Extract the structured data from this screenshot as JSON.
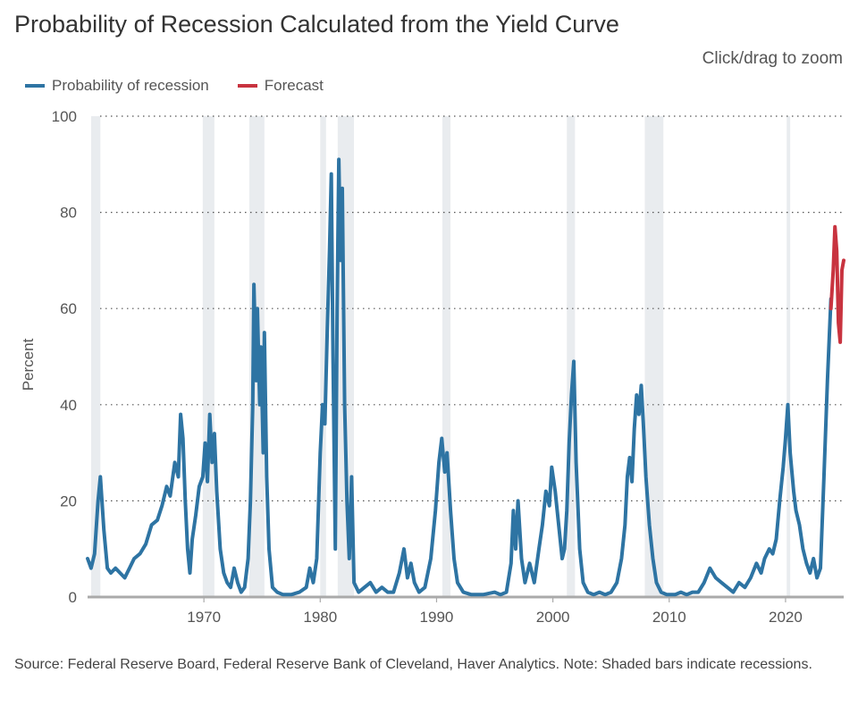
{
  "header": {
    "title": "Probability of Recession Calculated from the Yield Curve",
    "zoom_hint": "Click/drag to zoom"
  },
  "footer": {
    "source": "Source: Federal Reserve Board, Federal Reserve Bank of Cleveland, Haver Analytics. Note: Shaded bars indicate recessions."
  },
  "colors": {
    "series": "#2e74a3",
    "forecast": "#c8333f",
    "recession": "#e9ecef",
    "grid": "#555555",
    "axis": "#aaaaaa"
  },
  "chart_data": {
    "type": "line",
    "title": "Probability of Recession Calculated from the Yield Curve",
    "xlabel": "",
    "ylabel": "Percent",
    "xlim": [
      1960.0,
      2025.0
    ],
    "ylim": [
      0,
      100
    ],
    "x_ticks": [
      1970,
      1980,
      1990,
      2000,
      2010,
      2020
    ],
    "y_ticks": [
      0,
      20,
      40,
      60,
      80,
      100
    ],
    "grid": "horizontal dotted",
    "legend_position": "top-left",
    "recessions": [
      [
        1960.3,
        1961.1
      ],
      [
        1969.9,
        1970.9
      ],
      [
        1973.9,
        1975.2
      ],
      [
        1980.0,
        1980.5
      ],
      [
        1981.5,
        1982.9
      ],
      [
        1990.5,
        1991.2
      ],
      [
        2001.2,
        2001.9
      ],
      [
        2007.9,
        2009.5
      ],
      [
        2020.1,
        2020.4
      ]
    ],
    "series": [
      {
        "name": "Probability of recession",
        "points": [
          [
            1960.0,
            8
          ],
          [
            1960.3,
            6
          ],
          [
            1960.6,
            9
          ],
          [
            1960.9,
            20
          ],
          [
            1961.1,
            25
          ],
          [
            1961.4,
            14
          ],
          [
            1961.7,
            6
          ],
          [
            1962.0,
            5
          ],
          [
            1962.4,
            6
          ],
          [
            1962.8,
            5
          ],
          [
            1963.2,
            4
          ],
          [
            1963.6,
            6
          ],
          [
            1964.0,
            8
          ],
          [
            1964.5,
            9
          ],
          [
            1965.0,
            11
          ],
          [
            1965.5,
            15
          ],
          [
            1966.0,
            16
          ],
          [
            1966.4,
            19
          ],
          [
            1966.8,
            23
          ],
          [
            1967.1,
            21
          ],
          [
            1967.5,
            28
          ],
          [
            1967.8,
            25
          ],
          [
            1968.0,
            38
          ],
          [
            1968.2,
            33
          ],
          [
            1968.4,
            20
          ],
          [
            1968.6,
            10
          ],
          [
            1968.8,
            5
          ],
          [
            1969.0,
            12
          ],
          [
            1969.3,
            17
          ],
          [
            1969.6,
            23
          ],
          [
            1969.9,
            25
          ],
          [
            1970.1,
            32
          ],
          [
            1970.3,
            24
          ],
          [
            1970.5,
            38
          ],
          [
            1970.7,
            28
          ],
          [
            1970.9,
            34
          ],
          [
            1971.1,
            22
          ],
          [
            1971.4,
            10
          ],
          [
            1971.7,
            5
          ],
          [
            1972.0,
            3
          ],
          [
            1972.3,
            2
          ],
          [
            1972.6,
            6
          ],
          [
            1972.9,
            3
          ],
          [
            1973.2,
            1
          ],
          [
            1973.5,
            2
          ],
          [
            1973.8,
            8
          ],
          [
            1974.0,
            20
          ],
          [
            1974.2,
            40
          ],
          [
            1974.3,
            65
          ],
          [
            1974.5,
            45
          ],
          [
            1974.6,
            60
          ],
          [
            1974.8,
            40
          ],
          [
            1974.9,
            52
          ],
          [
            1975.1,
            30
          ],
          [
            1975.2,
            55
          ],
          [
            1975.4,
            25
          ],
          [
            1975.6,
            10
          ],
          [
            1975.9,
            2
          ],
          [
            1976.3,
            1
          ],
          [
            1976.8,
            0.5
          ],
          [
            1977.5,
            0.5
          ],
          [
            1978.2,
            1
          ],
          [
            1978.8,
            2
          ],
          [
            1979.1,
            6
          ],
          [
            1979.4,
            3
          ],
          [
            1979.7,
            8
          ],
          [
            1980.0,
            30
          ],
          [
            1980.2,
            40
          ],
          [
            1980.4,
            36
          ],
          [
            1980.6,
            55
          ],
          [
            1980.8,
            72
          ],
          [
            1980.95,
            88
          ],
          [
            1981.1,
            50
          ],
          [
            1981.3,
            10
          ],
          [
            1981.45,
            60
          ],
          [
            1981.6,
            91
          ],
          [
            1981.75,
            70
          ],
          [
            1981.9,
            85
          ],
          [
            1982.1,
            40
          ],
          [
            1982.3,
            20
          ],
          [
            1982.5,
            8
          ],
          [
            1982.7,
            25
          ],
          [
            1982.9,
            3
          ],
          [
            1983.3,
            1
          ],
          [
            1983.8,
            2
          ],
          [
            1984.3,
            3
          ],
          [
            1984.8,
            1
          ],
          [
            1985.3,
            2
          ],
          [
            1985.8,
            1
          ],
          [
            1986.3,
            1
          ],
          [
            1986.8,
            5
          ],
          [
            1987.2,
            10
          ],
          [
            1987.5,
            4
          ],
          [
            1987.8,
            7
          ],
          [
            1988.1,
            3
          ],
          [
            1988.5,
            1
          ],
          [
            1989.0,
            2
          ],
          [
            1989.5,
            8
          ],
          [
            1989.9,
            18
          ],
          [
            1990.2,
            28
          ],
          [
            1990.45,
            33
          ],
          [
            1990.7,
            26
          ],
          [
            1990.9,
            30
          ],
          [
            1991.2,
            18
          ],
          [
            1991.5,
            8
          ],
          [
            1991.8,
            3
          ],
          [
            1992.3,
            1
          ],
          [
            1993.0,
            0.5
          ],
          [
            1994.0,
            0.5
          ],
          [
            1995.0,
            1
          ],
          [
            1995.5,
            0.5
          ],
          [
            1996.0,
            1
          ],
          [
            1996.4,
            7
          ],
          [
            1996.6,
            18
          ],
          [
            1996.8,
            10
          ],
          [
            1997.0,
            20
          ],
          [
            1997.3,
            8
          ],
          [
            1997.6,
            3
          ],
          [
            1998.0,
            7
          ],
          [
            1998.4,
            3
          ],
          [
            1998.8,
            10
          ],
          [
            1999.1,
            15
          ],
          [
            1999.4,
            22
          ],
          [
            1999.7,
            19
          ],
          [
            1999.9,
            27
          ],
          [
            2000.2,
            22
          ],
          [
            2000.5,
            15
          ],
          [
            2000.8,
            8
          ],
          [
            2001.0,
            10
          ],
          [
            2001.2,
            18
          ],
          [
            2001.4,
            32
          ],
          [
            2001.6,
            42
          ],
          [
            2001.8,
            49
          ],
          [
            2002.0,
            28
          ],
          [
            2002.3,
            10
          ],
          [
            2002.6,
            3
          ],
          [
            2003.0,
            1
          ],
          [
            2003.5,
            0.5
          ],
          [
            2004.0,
            1
          ],
          [
            2004.5,
            0.5
          ],
          [
            2005.0,
            1
          ],
          [
            2005.5,
            3
          ],
          [
            2005.9,
            8
          ],
          [
            2006.2,
            15
          ],
          [
            2006.4,
            25
          ],
          [
            2006.6,
            29
          ],
          [
            2006.8,
            24
          ],
          [
            2007.0,
            35
          ],
          [
            2007.2,
            42
          ],
          [
            2007.4,
            38
          ],
          [
            2007.6,
            44
          ],
          [
            2007.8,
            35
          ],
          [
            2008.0,
            25
          ],
          [
            2008.3,
            15
          ],
          [
            2008.6,
            8
          ],
          [
            2008.9,
            3
          ],
          [
            2009.3,
            1
          ],
          [
            2009.8,
            0.5
          ],
          [
            2010.5,
            0.5
          ],
          [
            2011.0,
            1
          ],
          [
            2011.5,
            0.5
          ],
          [
            2012.0,
            1
          ],
          [
            2012.5,
            1
          ],
          [
            2013.0,
            3
          ],
          [
            2013.5,
            6
          ],
          [
            2014.0,
            4
          ],
          [
            2014.5,
            3
          ],
          [
            2015.0,
            2
          ],
          [
            2015.5,
            1
          ],
          [
            2016.0,
            3
          ],
          [
            2016.5,
            2
          ],
          [
            2017.0,
            4
          ],
          [
            2017.5,
            7
          ],
          [
            2017.9,
            5
          ],
          [
            2018.2,
            8
          ],
          [
            2018.6,
            10
          ],
          [
            2018.9,
            9
          ],
          [
            2019.2,
            12
          ],
          [
            2019.5,
            20
          ],
          [
            2019.8,
            27
          ],
          [
            2020.0,
            33
          ],
          [
            2020.2,
            40
          ],
          [
            2020.4,
            30
          ],
          [
            2020.7,
            22
          ],
          [
            2020.9,
            18
          ],
          [
            2021.2,
            15
          ],
          [
            2021.5,
            10
          ],
          [
            2021.8,
            7
          ],
          [
            2022.1,
            5
          ],
          [
            2022.4,
            8
          ],
          [
            2022.7,
            4
          ],
          [
            2023.0,
            6
          ],
          [
            2023.3,
            25
          ],
          [
            2023.6,
            45
          ],
          [
            2023.9,
            62
          ]
        ]
      },
      {
        "name": "Forecast",
        "points": [
          [
            2023.9,
            60
          ],
          [
            2024.1,
            68
          ],
          [
            2024.25,
            77
          ],
          [
            2024.4,
            72
          ],
          [
            2024.55,
            57
          ],
          [
            2024.7,
            53
          ],
          [
            2024.85,
            68
          ],
          [
            2025.0,
            70
          ]
        ]
      }
    ]
  }
}
